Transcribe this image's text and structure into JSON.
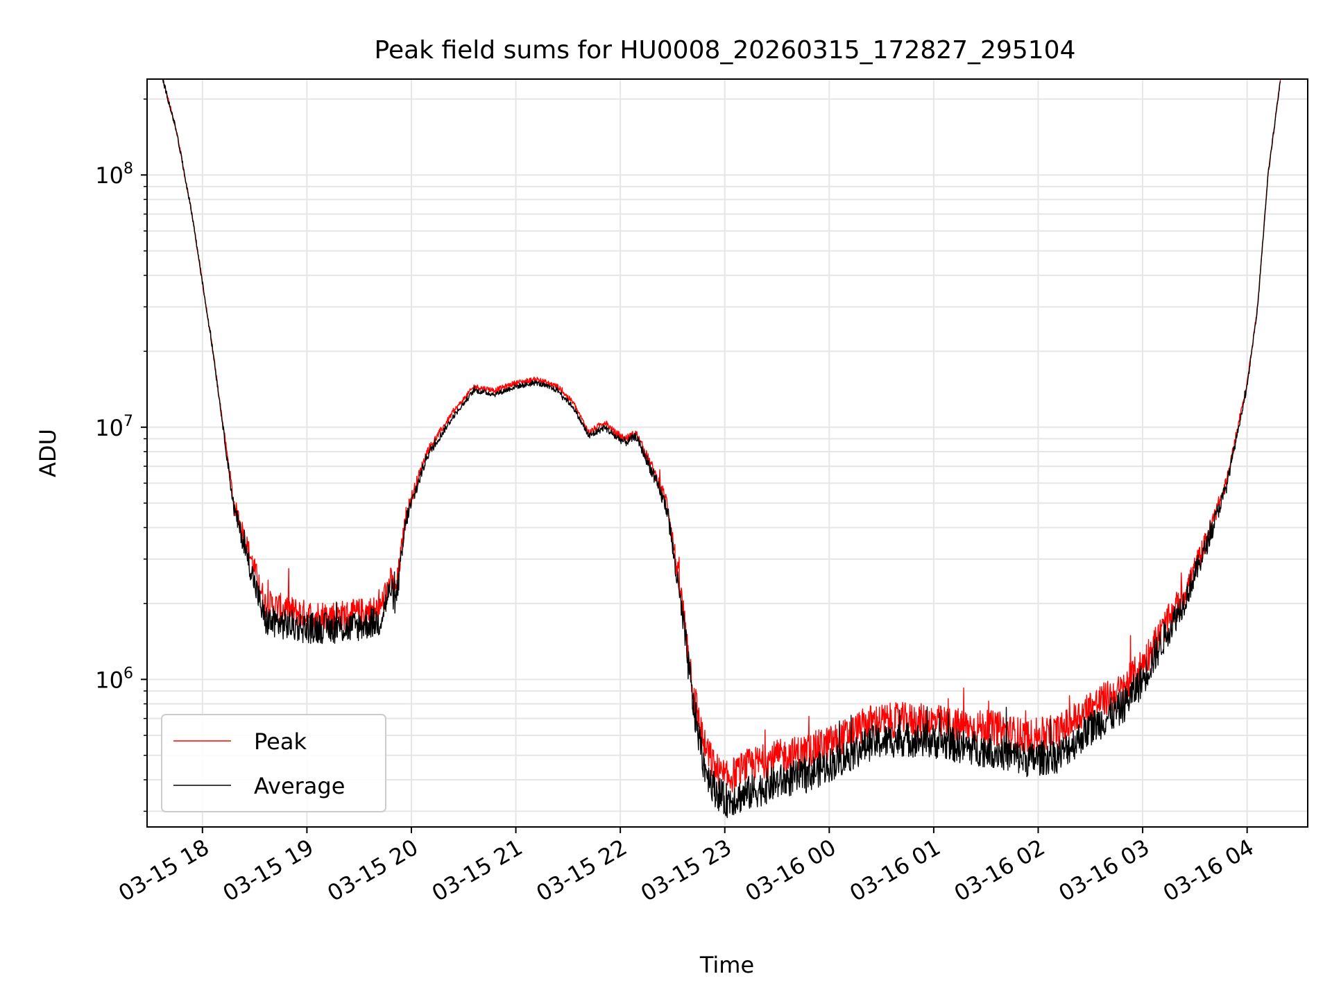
{
  "chart_data": {
    "type": "line",
    "title": "Peak field sums for HU0008_20260315_172827_295104",
    "xlabel": "Time",
    "ylabel": "ADU",
    "yscale": "log",
    "ylim": [
      260000,
      240000000
    ],
    "xlim_hours": [
      17.47,
      28.58
    ],
    "x_ticks": [
      {
        "label": "03-15 18",
        "hour": 18
      },
      {
        "label": "03-15 19",
        "hour": 19
      },
      {
        "label": "03-15 20",
        "hour": 20
      },
      {
        "label": "03-15 21",
        "hour": 21
      },
      {
        "label": "03-15 22",
        "hour": 22
      },
      {
        "label": "03-15 23",
        "hour": 23
      },
      {
        "label": "03-16 00",
        "hour": 24
      },
      {
        "label": "03-16 01",
        "hour": 25
      },
      {
        "label": "03-16 02",
        "hour": 26
      },
      {
        "label": "03-16 03",
        "hour": 27
      },
      {
        "label": "03-16 04",
        "hour": 28
      }
    ],
    "y_ticks": [
      {
        "base": "10",
        "exp": "6",
        "value": 1000000
      },
      {
        "base": "10",
        "exp": "7",
        "value": 10000000
      },
      {
        "base": "10",
        "exp": "8",
        "value": 100000000
      }
    ],
    "grid": true,
    "legend_position": "lower-left",
    "series": [
      {
        "name": "Peak",
        "color": "#ff0000",
        "noise_amplitude": 0.07,
        "offset_factor": 1.15,
        "hours": [
          17.62,
          17.75,
          17.9,
          18.1,
          18.3,
          18.6,
          19.0,
          19.4,
          19.7,
          19.8,
          19.85,
          19.95,
          20.15,
          20.4,
          20.6,
          20.8,
          21.0,
          21.2,
          21.4,
          21.55,
          21.7,
          21.85,
          21.95,
          22.05,
          22.15,
          22.3,
          22.45,
          22.6,
          22.7,
          22.8,
          22.9,
          23.0,
          23.2,
          23.5,
          23.8,
          24.1,
          24.4,
          24.7,
          25.0,
          25.3,
          25.6,
          25.9,
          26.2,
          26.5,
          26.8,
          27.0,
          27.2,
          27.4,
          27.6,
          27.8,
          28.0,
          28.1,
          28.2,
          28.32
        ],
        "values": [
          240000000,
          150000000,
          70000000,
          20000000,
          5000000,
          2000000,
          1800000,
          1800000,
          1900000,
          2500000,
          2200000,
          4500000,
          8000000,
          11500000,
          14500000,
          14000000,
          15000000,
          15500000,
          14500000,
          12500000,
          9500000,
          10500000,
          9500000,
          9000000,
          9500000,
          7000000,
          5000000,
          1900000,
          900000,
          550000,
          450000,
          400000,
          450000,
          490000,
          520000,
          580000,
          680000,
          690000,
          680000,
          650000,
          640000,
          590000,
          620000,
          780000,
          900000,
          1150000,
          1600000,
          2200000,
          3500000,
          6000000,
          15000000,
          30000000,
          100000000,
          240000000
        ]
      },
      {
        "name": "Average",
        "color": "#000000",
        "noise_amplitude": 0.07,
        "offset_factor": 1.0,
        "hours": [
          17.62,
          17.75,
          17.9,
          18.1,
          18.3,
          18.6,
          19.0,
          19.4,
          19.7,
          19.8,
          19.85,
          19.95,
          20.15,
          20.4,
          20.6,
          20.8,
          21.0,
          21.2,
          21.4,
          21.55,
          21.7,
          21.85,
          21.95,
          22.05,
          22.15,
          22.3,
          22.45,
          22.6,
          22.7,
          22.8,
          22.9,
          23.0,
          23.2,
          23.5,
          23.8,
          24.1,
          24.4,
          24.7,
          25.0,
          25.3,
          25.6,
          25.9,
          26.2,
          26.5,
          26.8,
          27.0,
          27.2,
          27.4,
          27.6,
          27.8,
          28.0,
          28.1,
          28.2,
          28.32
        ],
        "values": [
          240000000,
          150000000,
          70000000,
          20000000,
          4800000,
          1700000,
          1600000,
          1600000,
          1700000,
          2300000,
          2000000,
          4300000,
          7700000,
          11000000,
          14000000,
          13500000,
          14500000,
          15000000,
          14000000,
          12000000,
          9200000,
          10000000,
          9200000,
          8700000,
          9200000,
          6700000,
          4700000,
          1700000,
          780000,
          460000,
          370000,
          330000,
          350000,
          390000,
          420000,
          480000,
          560000,
          580000,
          570000,
          540000,
          520000,
          480000,
          500000,
          640000,
          770000,
          1000000,
          1450000,
          2050000,
          3300000,
          5800000,
          14500000,
          30000000,
          100000000,
          240000000
        ]
      }
    ]
  }
}
